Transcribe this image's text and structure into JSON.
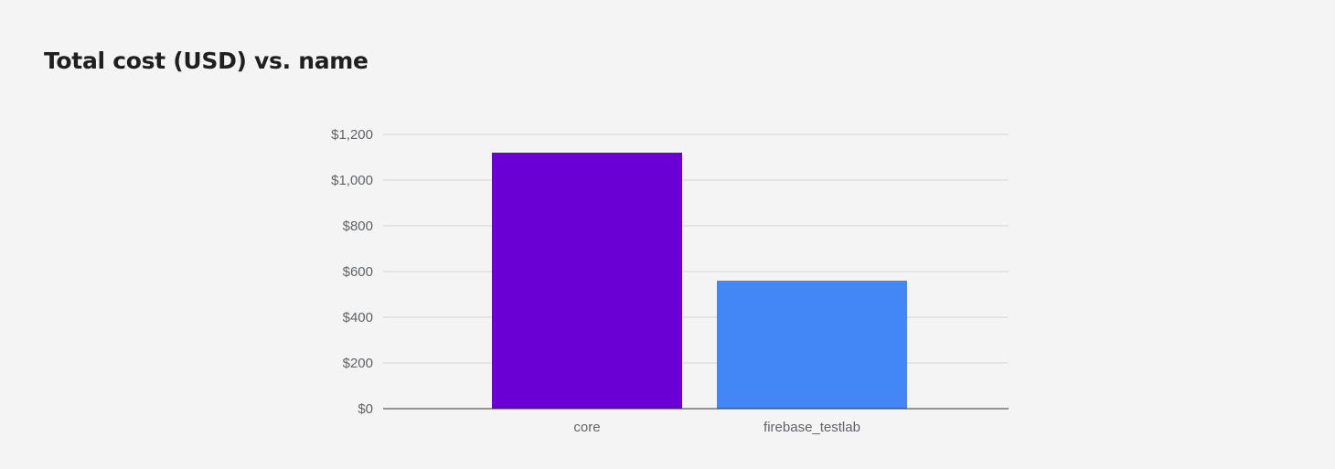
{
  "chart_data": {
    "type": "bar",
    "title": "Total cost (USD) vs. name",
    "xlabel": "",
    "ylabel": "",
    "categories": [
      "core",
      "firebase_testlab"
    ],
    "values": [
      1120,
      560
    ],
    "bar_colors": [
      "#6a00d4",
      "#4287f5"
    ],
    "ylim": [
      0,
      1200
    ],
    "y_ticks": [
      0,
      200,
      400,
      600,
      800,
      1000,
      1200
    ],
    "y_tick_labels": [
      "$0",
      "$200",
      "$400",
      "$600",
      "$800",
      "$1,000",
      "$1,200"
    ],
    "grid": true,
    "legend": "none"
  },
  "colors": {
    "background": "#f4f4f4",
    "gridline": "#d3d3d3",
    "axis": "#333333",
    "text": "#5f6368",
    "title": "#1f1f1f"
  }
}
